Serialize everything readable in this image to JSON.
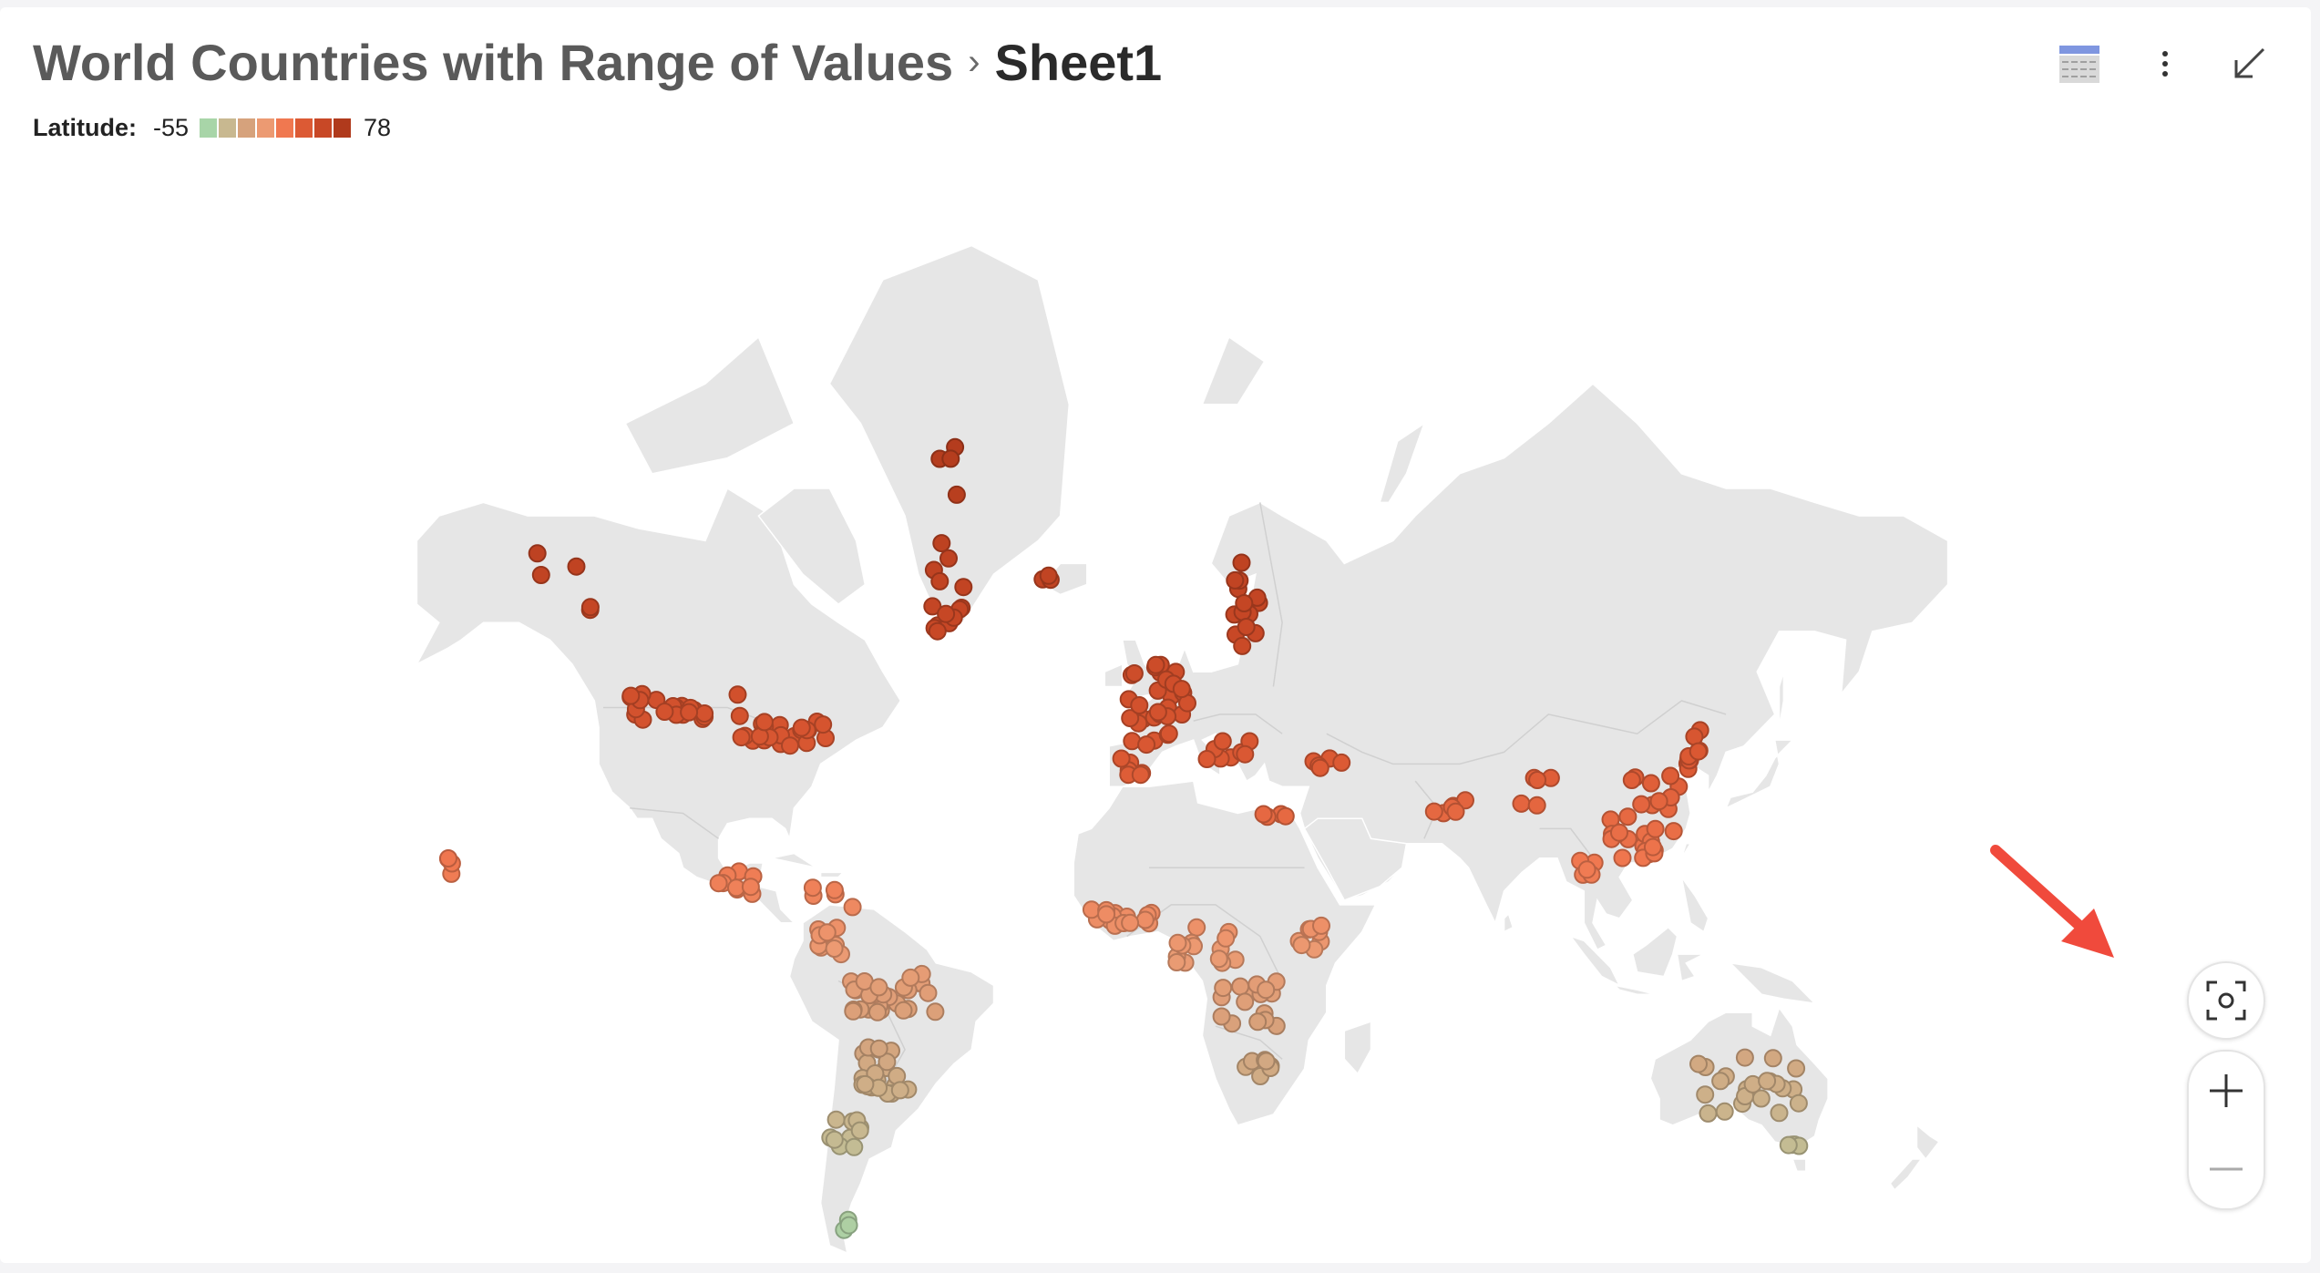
{
  "header": {
    "dataset_title": "World Countries with Range of Values",
    "breadcrumb_separator": "›",
    "sheet_title": "Sheet1"
  },
  "legend": {
    "label": "Latitude:",
    "min_label": "-55",
    "max_label": "78",
    "colors": [
      "#a8d5a8",
      "#c8b890",
      "#d6a27c",
      "#ec9a72",
      "#f07850",
      "#dc5a34",
      "#c84826",
      "#b03a1c"
    ]
  },
  "toolbar": {
    "icons": [
      "table-view-icon",
      "more-options-icon",
      "collapse-icon"
    ]
  },
  "controls": {
    "icons": [
      "fit-to-view-icon",
      "zoom-in-icon",
      "zoom-out-icon"
    ]
  },
  "annotation": {
    "arrow_color": "#f04a3c"
  },
  "map_data": {
    "land_color": "#e6e6e6",
    "border_color": "#ffffff",
    "color_field": "Latitude",
    "color_range": [
      -55,
      78
    ],
    "clusters": [
      {
        "lon": -105,
        "lat": 49,
        "count": 22,
        "spread": [
          14,
          2
        ]
      },
      {
        "lon": -82,
        "lat": 45,
        "count": 24,
        "spread": [
          10,
          2
        ]
      },
      {
        "lon": -128,
        "lat": 62,
        "count": 5,
        "spread": [
          12,
          5
        ]
      },
      {
        "lon": -45,
        "lat": 68,
        "count": 18,
        "spread": [
          4,
          9
        ]
      },
      {
        "lon": -22,
        "lat": 64,
        "count": 3,
        "spread": [
          2,
          1
        ]
      },
      {
        "lon": 2,
        "lat": 49,
        "count": 30,
        "spread": [
          7,
          6
        ]
      },
      {
        "lon": 22,
        "lat": 62,
        "count": 14,
        "spread": [
          3,
          5
        ]
      },
      {
        "lon": -4,
        "lat": 40,
        "count": 6,
        "spread": [
          3,
          2
        ]
      },
      {
        "lon": 18,
        "lat": 42,
        "count": 8,
        "spread": [
          6,
          2
        ]
      },
      {
        "lon": 40,
        "lat": 40,
        "count": 5,
        "spread": [
          4,
          1
        ]
      },
      {
        "lon": 28,
        "lat": 30,
        "count": 4,
        "spread": [
          3,
          2
        ]
      },
      {
        "lon": 68,
        "lat": 32,
        "count": 6,
        "spread": [
          5,
          3
        ]
      },
      {
        "lon": 88,
        "lat": 35,
        "count": 5,
        "spread": [
          5,
          3
        ]
      },
      {
        "lon": 112,
        "lat": 30,
        "count": 30,
        "spread": [
          8,
          8
        ]
      },
      {
        "lon": 124,
        "lat": 42,
        "count": 10,
        "spread": [
          3,
          4
        ]
      },
      {
        "lon": 98,
        "lat": 20,
        "count": 5,
        "spread": [
          3,
          3
        ]
      },
      {
        "lon": -92,
        "lat": 17,
        "count": 10,
        "spread": [
          5,
          3
        ]
      },
      {
        "lon": -70,
        "lat": 14,
        "count": 5,
        "spread": [
          6,
          3
        ]
      },
      {
        "lon": -6,
        "lat": 9,
        "count": 16,
        "spread": [
          7,
          2
        ]
      },
      {
        "lon": 14,
        "lat": 3,
        "count": 14,
        "spread": [
          8,
          4
        ]
      },
      {
        "lon": 36,
        "lat": 5,
        "count": 8,
        "spread": [
          3,
          3
        ]
      },
      {
        "lon": -73,
        "lat": 4,
        "count": 10,
        "spread": [
          4,
          3
        ]
      },
      {
        "lon": -58,
        "lat": -8,
        "count": 28,
        "spread": [
          10,
          5
        ]
      },
      {
        "lon": 22,
        "lat": -10,
        "count": 16,
        "spread": [
          7,
          5
        ]
      },
      {
        "lon": -60,
        "lat": -24,
        "count": 22,
        "spread": [
          6,
          5
        ]
      },
      {
        "lon": 25,
        "lat": -25,
        "count": 7,
        "spread": [
          4,
          3
        ]
      },
      {
        "lon": -68,
        "lat": -36,
        "count": 10,
        "spread": [
          4,
          4
        ]
      },
      {
        "lon": -69,
        "lat": -50,
        "count": 3,
        "spread": [
          2,
          3
        ]
      },
      {
        "lon": 135,
        "lat": -27,
        "count": 22,
        "spread": [
          12,
          6
        ]
      },
      {
        "lon": 146,
        "lat": -38,
        "count": 4,
        "spread": [
          2,
          1
        ]
      },
      {
        "lon": -157,
        "lat": 20,
        "count": 4,
        "spread": [
          2,
          2
        ]
      }
    ]
  }
}
